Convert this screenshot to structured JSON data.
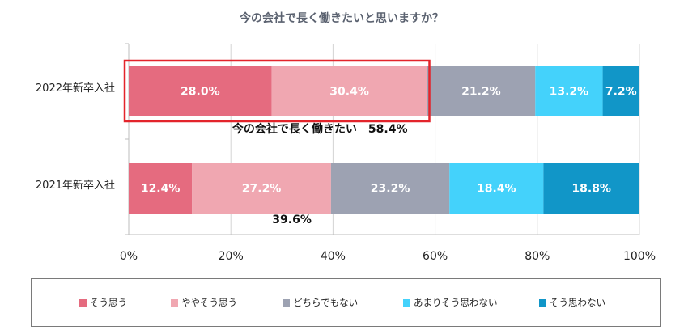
{
  "chart_data": {
    "type": "bar",
    "orientation": "horizontal",
    "stacked": true,
    "title": "今の会社で長く働きたいと思いますか？",
    "categories": [
      "2022年新卒入社",
      "2021年新卒入社"
    ],
    "series": [
      {
        "name": "そう思う",
        "color": "#e56b7f",
        "values": [
          28.0,
          12.4
        ],
        "labels": [
          "28.0%",
          "12.4%"
        ]
      },
      {
        "name": "ややそう思う",
        "color": "#f0a7b1",
        "values": [
          30.4,
          27.2
        ],
        "labels": [
          "30.4%",
          "27.2%"
        ]
      },
      {
        "name": "どちらでもない",
        "color": "#9da2b2",
        "values": [
          21.2,
          23.2
        ],
        "labels": [
          "21.2%",
          "23.2%"
        ]
      },
      {
        "name": "あまりそう思わない",
        "color": "#44d2fb",
        "values": [
          13.2,
          18.4
        ],
        "labels": [
          "13.2%",
          "18.4%"
        ]
      },
      {
        "name": "そう思わない",
        "color": "#1196c8",
        "values": [
          7.2,
          18.8
        ],
        "labels": [
          "7.2%",
          "18.8%"
        ]
      }
    ],
    "xlim": [
      0,
      100
    ],
    "xticks": [
      0,
      20,
      40,
      60,
      80,
      100
    ],
    "xtick_labels": [
      "0%",
      "20%",
      "40%",
      "60%",
      "80%",
      "100%"
    ],
    "annotations": [
      {
        "category": "2022年新卒入社",
        "text": "今の会社で長く働きたい　58.4%",
        "value": 58.4,
        "highlight": true
      },
      {
        "category": "2021年新卒入社",
        "text": "39.6%",
        "value": 39.6,
        "highlight": false
      }
    ],
    "highlight_color": "#e3242b",
    "legend_position": "bottom"
  }
}
